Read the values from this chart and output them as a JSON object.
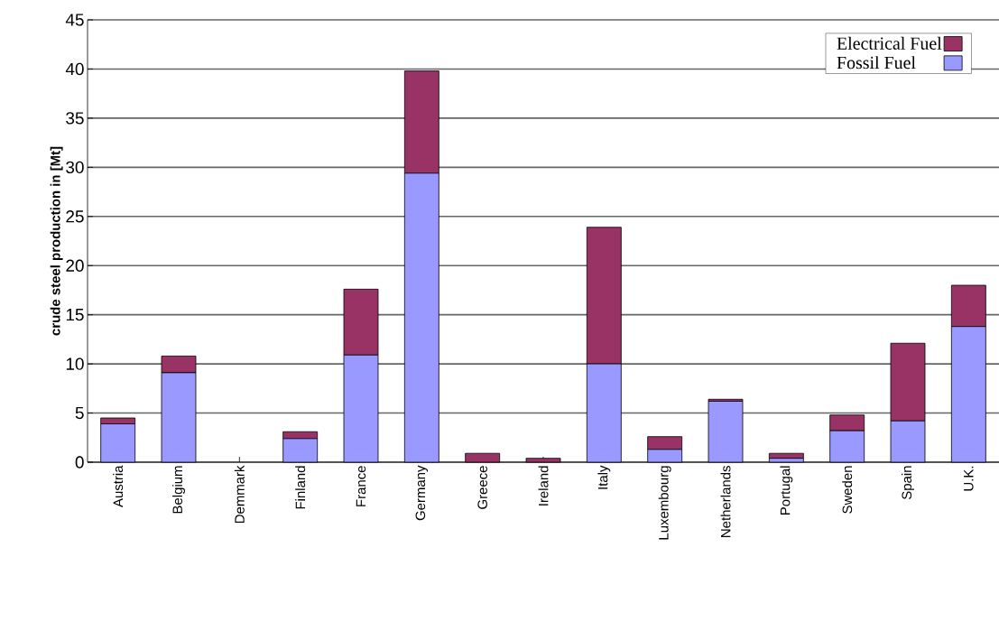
{
  "chart_data": {
    "type": "bar",
    "stacked": true,
    "ylabel": "crude steel production in [Mt]",
    "categories": [
      "Austria",
      "Belgium",
      "Demmark",
      "Finland",
      "France",
      "Germany",
      "Greece",
      "Ireland",
      "Italy",
      "Luxembourg",
      "Netherlands",
      "Portugal",
      "Sweden",
      "Spain",
      "U.K."
    ],
    "series": [
      {
        "name": "Fossil Fuel",
        "color": "#9999ff",
        "values": [
          3.9,
          9.1,
          0,
          2.4,
          10.9,
          29.4,
          0,
          0,
          10,
          1.3,
          6.2,
          0.4,
          3.2,
          4.2,
          13.8
        ]
      },
      {
        "name": "Electrical Fuel",
        "color": "#993366",
        "values": [
          0.6,
          1.7,
          0,
          0.7,
          6.7,
          10.4,
          0.9,
          0.4,
          13.9,
          1.3,
          0.2,
          0.5,
          1.6,
          7.9,
          4.2
        ]
      }
    ],
    "ylim": [
      0,
      45
    ],
    "yticks": [
      0,
      5,
      10,
      15,
      20,
      25,
      30,
      35,
      40,
      45
    ],
    "grid": "y",
    "legend": "top right"
  }
}
